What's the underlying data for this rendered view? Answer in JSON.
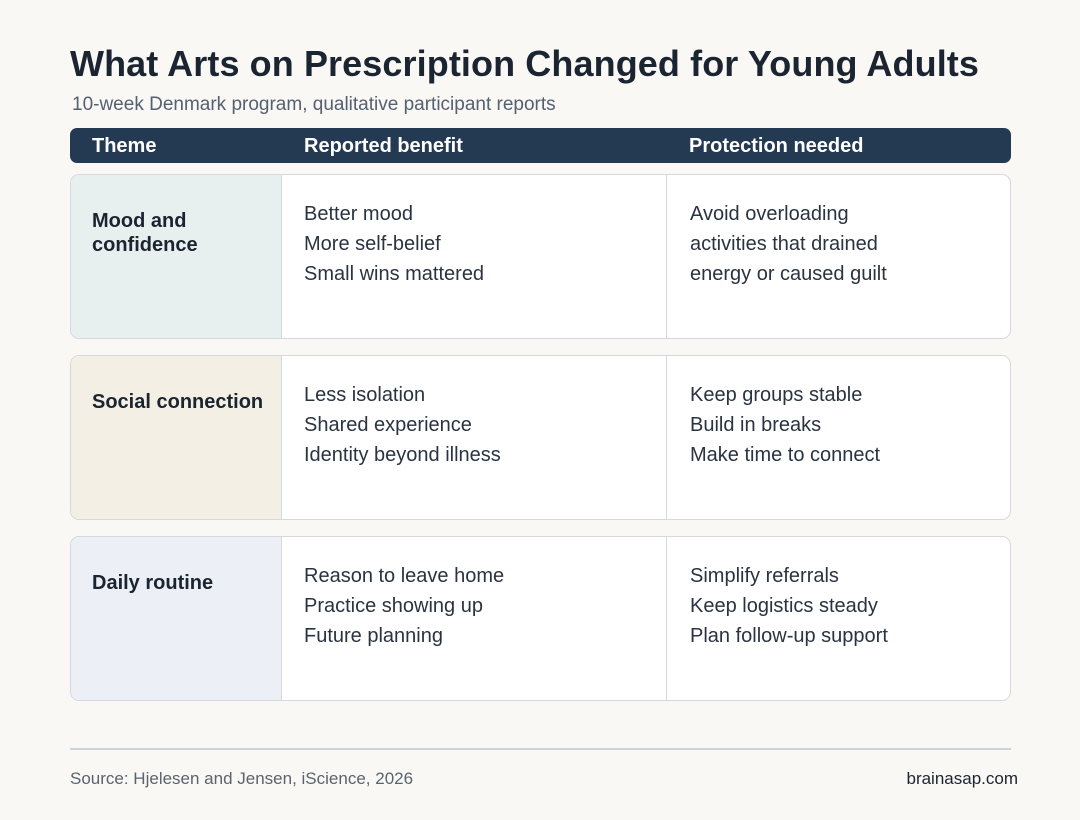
{
  "title": "What Arts on Prescription Changed for Young Adults",
  "subtitle": "10-week Denmark program, qualitative participant reports",
  "table": {
    "headers": [
      "Theme",
      "Reported benefit",
      "Protection needed"
    ],
    "rows": [
      {
        "theme": "Mood and confidence",
        "theme_color": "#e8f0ef",
        "benefits": [
          "Better mood",
          "More self-belief",
          "Small wins mattered"
        ],
        "protections": [
          "Avoid overloading",
          "activities that drained",
          "energy or caused guilt"
        ]
      },
      {
        "theme": "Social connection",
        "theme_color": "#f4efe4",
        "benefits": [
          "Less isolation",
          "Shared experience",
          "Identity beyond illness"
        ],
        "protections": [
          "Keep groups stable",
          "Build in breaks",
          "Make time to connect"
        ]
      },
      {
        "theme": "Daily routine",
        "theme_color": "#eceff6",
        "benefits": [
          "Reason to leave home",
          "Practice showing up",
          "Future planning"
        ],
        "protections": [
          "Simplify referrals",
          "Keep logistics steady",
          "Plan follow-up support"
        ]
      }
    ]
  },
  "footer": {
    "source": "Source: Hjelesen and Jensen, iScience, 2026",
    "brand": "brainasap.com"
  },
  "colors": {
    "header_bg": "#243a52",
    "page_bg": "#f9f8f5"
  }
}
